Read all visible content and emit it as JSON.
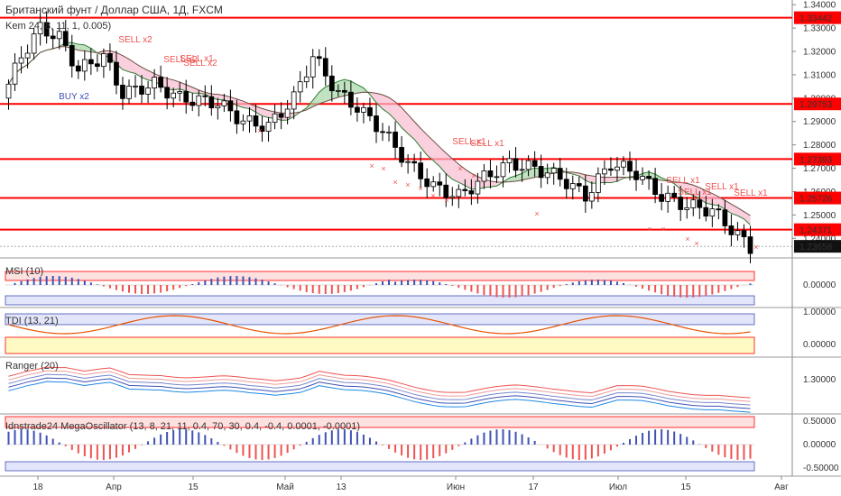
{
  "title": "Британский фунт / Доллар США, 1Д, FXCM",
  "colors": {
    "up": "#ffffff",
    "down": "#000000",
    "level": "#ff0000",
    "sell": "#ef5350",
    "buy": "#3f51b5",
    "band_up": "#a5d6a7",
    "band_dn": "#f8bbd0"
  },
  "chart_data": [
    {
      "type": "candlestick",
      "title": "Британский фунт / Доллар США, 1Д, FXCM",
      "indicator_label": "Kem 24, 8, 11, 1, 0.005)",
      "x_ticks": [
        "18",
        "Апр",
        "15",
        "Май",
        "13",
        "Июн",
        "17",
        "Июл",
        "15",
        "Авг"
      ],
      "y_ticks": [
        "1.34000",
        "1.33000",
        "1.32000",
        "1.31000",
        "1.30000",
        "1.29000",
        "1.28000",
        "1.27000",
        "1.26000",
        "1.25000",
        "1.24000"
      ],
      "ylim": [
        1.232,
        1.342
      ],
      "levels": [
        "1.33442",
        "1.29753",
        "1.27393",
        "1.25726",
        "1.24371"
      ],
      "last_price": "1.23658",
      "signals": [
        {
          "label": "SELL x2",
          "kind": "sell",
          "x": 0.22
        },
        {
          "label": "SELL x1",
          "kind": "sell",
          "x": 0.29
        },
        {
          "label": "SELL x2",
          "kind": "sell",
          "x": 0.26
        },
        {
          "label": "SELL x2",
          "kind": "sell",
          "x": 0.31
        },
        {
          "label": "BUY x2",
          "kind": "buy",
          "x": 0.11
        },
        {
          "label": "SELL x1",
          "kind": "sell",
          "x": 0.74
        },
        {
          "label": "SELL x1",
          "kind": "sell",
          "x": 0.94
        },
        {
          "label": "SELL x1",
          "kind": "sell",
          "x": 0.98
        },
        {
          "label": "SELL x1",
          "kind": "sell",
          "x": 1.0
        },
        {
          "label": "SELL x1",
          "kind": "sell",
          "x": 0.61
        },
        {
          "label": "SELL x1",
          "kind": "sell",
          "x": 0.65
        }
      ]
    },
    {
      "type": "bar",
      "title": "MSI (10)",
      "y_ticks": [
        "0.00000"
      ]
    },
    {
      "type": "line",
      "title": "TDI (13, 21)",
      "y_ticks": [
        "1.00000",
        "0.00000"
      ]
    },
    {
      "type": "line",
      "title": "Ranger (20)",
      "y_ticks": [
        "1.30000"
      ]
    },
    {
      "type": "bar",
      "title": "Idnstrade24 MegaOscillator (13, 8, 21, 11, 0.4, 70, 30, 0.4, -0.4, 0.0001, -0.0001)",
      "y_ticks": [
        "0.50000",
        "0.00000",
        "-0.50000"
      ]
    }
  ]
}
